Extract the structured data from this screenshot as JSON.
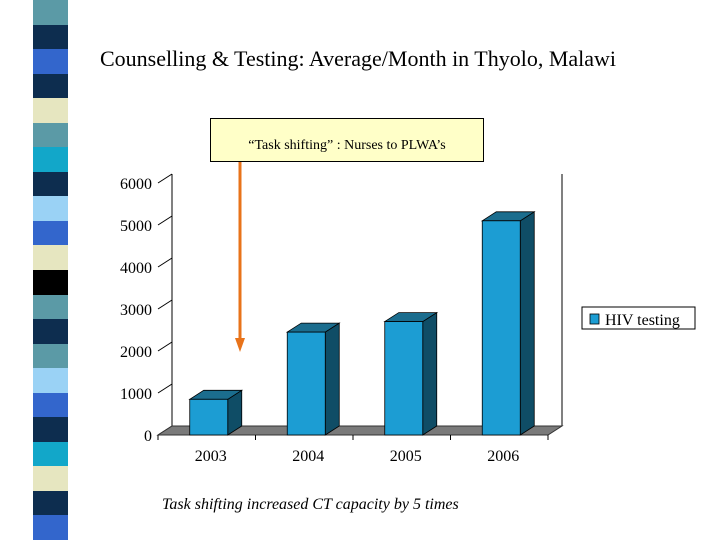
{
  "slide": {
    "title": "Counselling & Testing: Average/Month in Thyolo, Malawi",
    "callout": "“Task shifting” : Nurses to PLWA’s",
    "caption": "Task shifting increased CT capacity by 5 times"
  },
  "theme": {
    "bar_front": "#1c9dd3",
    "bar_side": "#0f4d66",
    "bar_top": "#1b6d8e",
    "floor": "#7a7a7a",
    "arrow": "#e8731a",
    "legend_swatch": "#1c9dd3",
    "callout_bg": "#ffffc8",
    "sidebar_colors": [
      "#5b9aa6",
      "#0d2d4f",
      "#3366cc",
      "#0d2d4f",
      "#e6e6c0",
      "#5b9aa6",
      "#12a7c9",
      "#0d2d4f",
      "#9ad2f5",
      "#3366cc",
      "#e6e6c0",
      "#000000",
      "#5b9aa6",
      "#0d2d4f",
      "#5b9aa6",
      "#9ad2f5",
      "#3366cc",
      "#0d2d4f",
      "#12a7c9",
      "#e6e6c0",
      "#0d2d4f",
      "#3366cc"
    ]
  },
  "chart_data": {
    "type": "bar",
    "categories": [
      "2003",
      "2004",
      "2005",
      "2006"
    ],
    "series": [
      {
        "name": "HIV testing",
        "values": [
          850,
          2450,
          2700,
          5100
        ]
      }
    ],
    "y_ticks": [
      "0",
      "1000",
      "2000",
      "3000",
      "4000",
      "5000",
      "6000"
    ],
    "ylim": [
      0,
      6000
    ],
    "legend_position": "right",
    "annotation": {
      "type": "arrow",
      "points_at": "2003",
      "color": "orange"
    }
  }
}
